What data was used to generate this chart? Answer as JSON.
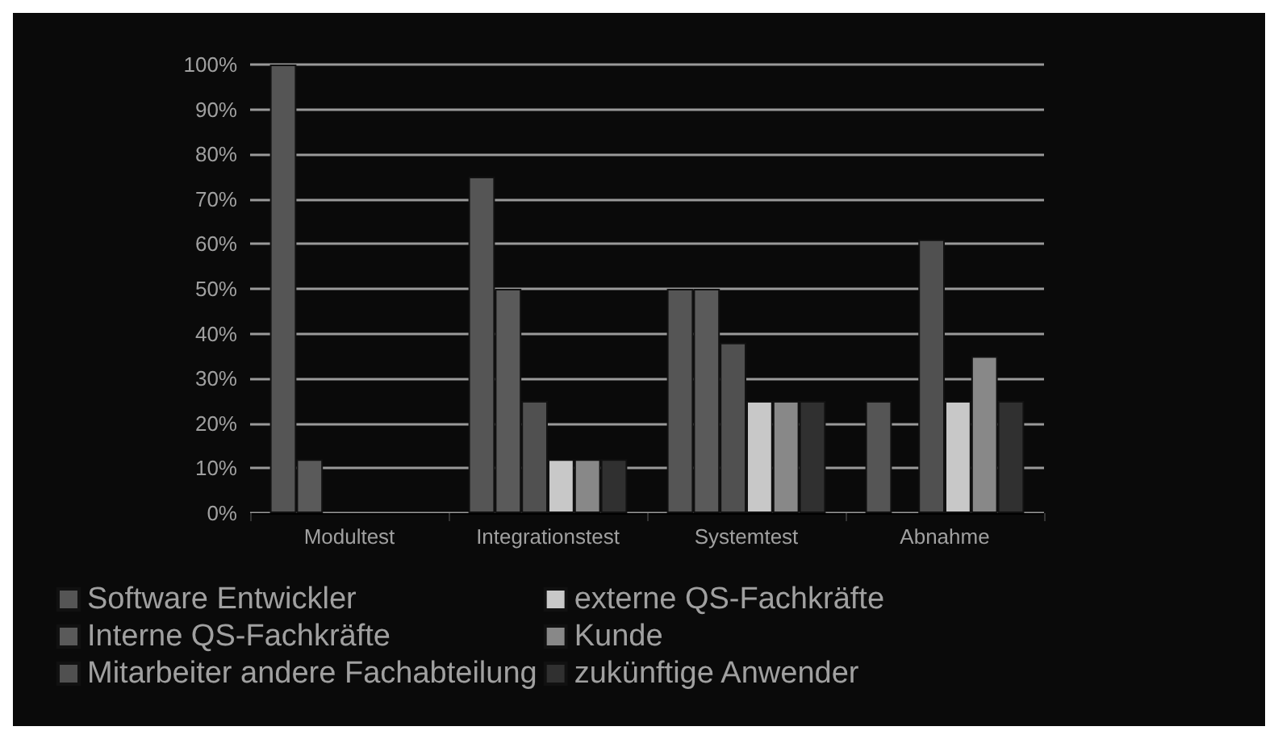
{
  "chart_data": {
    "type": "bar",
    "categories": [
      "Modultest",
      "Integrationstest",
      "Systemtest",
      "Abnahme"
    ],
    "series": [
      {
        "name": "Software Entwickler",
        "color": "#555555",
        "values": [
          100,
          75,
          50,
          25
        ]
      },
      {
        "name": "Interne QS-Fachkräfte",
        "color": "#5a5a5a",
        "values": [
          12,
          50,
          50,
          null
        ]
      },
      {
        "name": "Mitarbeiter andere Fachabteilung",
        "color": "#505050",
        "values": [
          null,
          25,
          38,
          61
        ]
      },
      {
        "name": "externe QS-Fachkräfte",
        "color": "#c8c8c8",
        "values": [
          null,
          12,
          25,
          25
        ]
      },
      {
        "name": "Kunde",
        "color": "#888888",
        "values": [
          null,
          12,
          25,
          35
        ]
      },
      {
        "name": "zukünftige Anwender",
        "color": "#303030",
        "values": [
          null,
          12,
          25,
          25
        ]
      }
    ],
    "ylim": [
      0,
      100
    ],
    "yticks": [
      {
        "value": 0,
        "label": "0%"
      },
      {
        "value": 10,
        "label": "10%"
      },
      {
        "value": 20,
        "label": "20%"
      },
      {
        "value": 30,
        "label": "30%"
      },
      {
        "value": 40,
        "label": "40%"
      },
      {
        "value": 50,
        "label": "50%"
      },
      {
        "value": 60,
        "label": "60%"
      },
      {
        "value": 70,
        "label": "70%"
      },
      {
        "value": 80,
        "label": "80%"
      },
      {
        "value": 90,
        "label": "90%"
      },
      {
        "value": 100,
        "label": "100%"
      }
    ],
    "grid": "y",
    "legend": "bottom"
  }
}
